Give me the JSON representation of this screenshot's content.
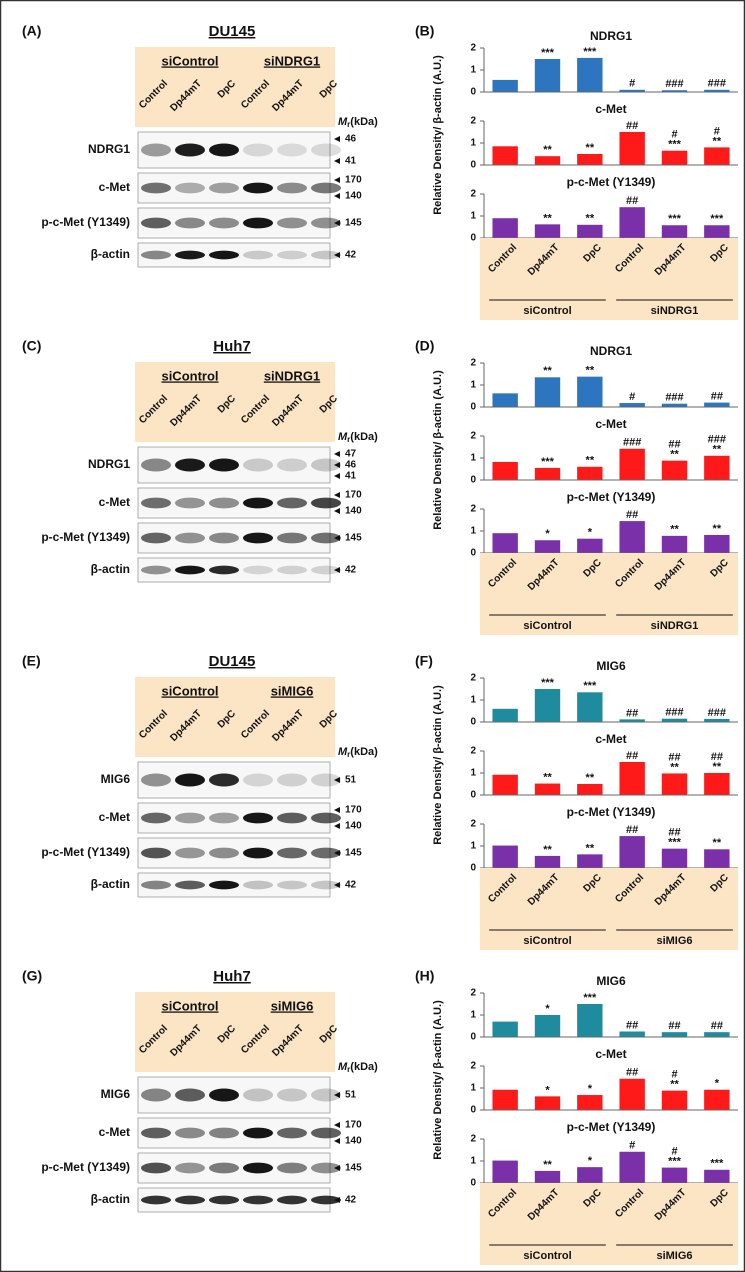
{
  "figure": {
    "blots": [
      {
        "label": "(A)",
        "cell": "DU145",
        "groups": [
          "siControl",
          "siNDRG1"
        ],
        "lanes": [
          "Control",
          "Dp44mT",
          "DpC",
          "Control",
          "Dp44mT",
          "DpC"
        ],
        "mr_label": "M",
        "mr_sub": "r",
        "mr_unit": "(kDa)",
        "rows": [
          {
            "name": "NDRG1",
            "markers": [
              "46",
              "41"
            ]
          },
          {
            "name": "c-Met",
            "markers": [
              "170",
              "140"
            ]
          },
          {
            "name": "p-c-Met (Y1349)",
            "markers": [
              "145"
            ]
          },
          {
            "name": "β-actin",
            "markers": [
              "42"
            ]
          }
        ]
      },
      {
        "label": "(C)",
        "cell": "Huh7",
        "groups": [
          "siControl",
          "siNDRG1"
        ],
        "lanes": [
          "Control",
          "Dp44mT",
          "DpC",
          "Control",
          "Dp44mT",
          "DpC"
        ],
        "mr_label": "M",
        "mr_sub": "r",
        "mr_unit": "(kDa)",
        "rows": [
          {
            "name": "NDRG1",
            "markers": [
              "47",
              "46",
              "41"
            ]
          },
          {
            "name": "c-Met",
            "markers": [
              "170",
              "140"
            ]
          },
          {
            "name": "p-c-Met (Y1349)",
            "markers": [
              "145"
            ]
          },
          {
            "name": "β-actin",
            "markers": [
              "42"
            ]
          }
        ]
      },
      {
        "label": "(E)",
        "cell": "DU145",
        "groups": [
          "siControl",
          "siMIG6"
        ],
        "lanes": [
          "Control",
          "Dp44mT",
          "DpC",
          "Control",
          "Dp44mT",
          "DpC"
        ],
        "mr_label": "M",
        "mr_sub": "r",
        "mr_unit": "(kDa)",
        "rows": [
          {
            "name": "MIG6",
            "markers": [
              "51"
            ]
          },
          {
            "name": "c-Met",
            "markers": [
              "170",
              "140"
            ]
          },
          {
            "name": "p-c-Met (Y1349)",
            "markers": [
              "145"
            ]
          },
          {
            "name": "β-actin",
            "markers": [
              "42"
            ]
          }
        ]
      },
      {
        "label": "(G)",
        "cell": "Huh7",
        "groups": [
          "siControl",
          "siMIG6"
        ],
        "lanes": [
          "Control",
          "Dp44mT",
          "DpC",
          "Control",
          "Dp44mT",
          "DpC"
        ],
        "mr_label": "M",
        "mr_sub": "r",
        "mr_unit": "(kDa)",
        "rows": [
          {
            "name": "MIG6",
            "markers": [
              "51"
            ]
          },
          {
            "name": "c-Met",
            "markers": [
              "170",
              "140"
            ]
          },
          {
            "name": "p-c-Met (Y1349)",
            "markers": [
              "145"
            ]
          },
          {
            "name": "β-actin",
            "markers": [
              "42"
            ]
          }
        ]
      }
    ],
    "plots": [
      {
        "label": "(B)",
        "ylabel": "Relative Density/ β-actin (A.U.)",
        "categories": [
          "Control",
          "Dp44mT",
          "DpC",
          "Control",
          "Dp44mT",
          "DpC"
        ],
        "groups": [
          "siControl",
          "siNDRG1"
        ]
      },
      {
        "label": "(D)",
        "ylabel": "Relative Density/ β-actin (A.U.)",
        "categories": [
          "Control",
          "Dp44mT",
          "DpC",
          "Control",
          "Dp44mT",
          "DpC"
        ],
        "groups": [
          "siControl",
          "siNDRG1"
        ]
      },
      {
        "label": "(F)",
        "ylabel": "Relative Density/ β-actin (A.U.)",
        "categories": [
          "Control",
          "Dp44mT",
          "DpC",
          "Control",
          "Dp44mT",
          "DpC"
        ],
        "groups": [
          "siControl",
          "siMIG6"
        ]
      },
      {
        "label": "(H)",
        "ylabel": "Relative Density/ β-actin (A.U.)",
        "categories": [
          "Control",
          "Dp44mT",
          "DpC",
          "Control",
          "Dp44mT",
          "DpC"
        ],
        "groups": [
          "siControl",
          "siMIG6"
        ]
      }
    ]
  },
  "chart_data": [
    {
      "type": "bar",
      "title": "NDRG1",
      "color": "#2e75c0",
      "values": [
        0.55,
        1.5,
        1.55,
        0.1,
        0.08,
        0.1
      ],
      "annotations": [
        null,
        [
          "***"
        ],
        [
          "***"
        ],
        [
          "#"
        ],
        [
          "###"
        ],
        [
          "###"
        ]
      ],
      "ylim": [
        0,
        2
      ],
      "yticks": [
        0,
        1,
        2
      ]
    },
    {
      "type": "bar",
      "title": "c-Met",
      "color": "#ff1a1a",
      "values": [
        0.85,
        0.4,
        0.5,
        1.5,
        0.65,
        0.8
      ],
      "annotations": [
        null,
        [
          "**"
        ],
        [
          "**"
        ],
        [
          "##"
        ],
        [
          "#",
          "***"
        ],
        [
          "#",
          "**"
        ]
      ],
      "ylim": [
        0,
        2
      ],
      "yticks": [
        0,
        1,
        2
      ]
    },
    {
      "type": "bar",
      "title": "p-c-Met (Y1349)",
      "color": "#7a30a8",
      "values": [
        0.9,
        0.62,
        0.6,
        1.4,
        0.58,
        0.58
      ],
      "annotations": [
        null,
        [
          "**"
        ],
        [
          "**"
        ],
        [
          "##"
        ],
        [
          "***"
        ],
        [
          "***"
        ]
      ],
      "ylim": [
        0,
        2
      ],
      "yticks": [
        0,
        1,
        2
      ]
    },
    {
      "type": "bar",
      "title": "NDRG1",
      "color": "#2e75c0",
      "values": [
        0.62,
        1.35,
        1.38,
        0.18,
        0.15,
        0.2
      ],
      "annotations": [
        null,
        [
          "**"
        ],
        [
          "**"
        ],
        [
          "#"
        ],
        [
          "###"
        ],
        [
          "##"
        ]
      ],
      "ylim": [
        0,
        2
      ],
      "yticks": [
        0,
        1,
        2
      ]
    },
    {
      "type": "bar",
      "title": "c-Met",
      "color": "#ff1a1a",
      "values": [
        0.82,
        0.55,
        0.6,
        1.42,
        0.88,
        1.1
      ],
      "annotations": [
        null,
        [
          "***"
        ],
        [
          "**"
        ],
        [
          "###"
        ],
        [
          "##",
          "**"
        ],
        [
          "###",
          "**"
        ]
      ],
      "ylim": [
        0,
        2
      ],
      "yticks": [
        0,
        1,
        2
      ]
    },
    {
      "type": "bar",
      "title": "p-c-Met (Y1349)",
      "color": "#7a30a8",
      "values": [
        0.9,
        0.58,
        0.65,
        1.45,
        0.78,
        0.82
      ],
      "annotations": [
        null,
        [
          "*"
        ],
        [
          "*"
        ],
        [
          "##"
        ],
        [
          "**"
        ],
        [
          "**"
        ]
      ],
      "ylim": [
        0,
        2
      ],
      "yticks": [
        0,
        1,
        2
      ]
    },
    {
      "type": "bar",
      "title": "MIG6",
      "color": "#1e8c9e",
      "values": [
        0.6,
        1.5,
        1.35,
        0.12,
        0.15,
        0.14
      ],
      "annotations": [
        null,
        [
          "***"
        ],
        [
          "***"
        ],
        [
          "##"
        ],
        [
          "###"
        ],
        [
          "###"
        ]
      ],
      "ylim": [
        0,
        2
      ],
      "yticks": [
        0,
        1,
        2
      ]
    },
    {
      "type": "bar",
      "title": "c-Met",
      "color": "#ff1a1a",
      "values": [
        0.92,
        0.52,
        0.5,
        1.5,
        0.98,
        1.0
      ],
      "annotations": [
        null,
        [
          "**"
        ],
        [
          "**"
        ],
        [
          "##"
        ],
        [
          "##",
          "**"
        ],
        [
          "##",
          "**"
        ]
      ],
      "ylim": [
        0,
        2
      ],
      "yticks": [
        0,
        1,
        2
      ]
    },
    {
      "type": "bar",
      "title": "p-c-Met (Y1349)",
      "color": "#7a30a8",
      "values": [
        1.02,
        0.55,
        0.62,
        1.45,
        0.88,
        0.85
      ],
      "annotations": [
        null,
        [
          "**"
        ],
        [
          "**"
        ],
        [
          "##"
        ],
        [
          "##",
          "***"
        ],
        [
          "**"
        ]
      ],
      "ylim": [
        0,
        2
      ],
      "yticks": [
        0,
        1,
        2
      ]
    },
    {
      "type": "bar",
      "title": "MIG6",
      "color": "#1e8c9e",
      "values": [
        0.7,
        1.0,
        1.5,
        0.25,
        0.22,
        0.22
      ],
      "annotations": [
        null,
        [
          "*"
        ],
        [
          "***"
        ],
        [
          "##"
        ],
        [
          "##"
        ],
        [
          "##"
        ]
      ],
      "ylim": [
        0,
        2
      ],
      "yticks": [
        0,
        1,
        2
      ]
    },
    {
      "type": "bar",
      "title": "c-Met",
      "color": "#ff1a1a",
      "values": [
        0.92,
        0.62,
        0.68,
        1.42,
        0.88,
        0.92
      ],
      "annotations": [
        null,
        [
          "*"
        ],
        [
          "*"
        ],
        [
          "##"
        ],
        [
          "#",
          "**"
        ],
        [
          "*"
        ]
      ],
      "ylim": [
        0,
        2
      ],
      "yticks": [
        0,
        1,
        2
      ]
    },
    {
      "type": "bar",
      "title": "p-c-Met (Y1349)",
      "color": "#7a30a8",
      "values": [
        1.02,
        0.55,
        0.72,
        1.42,
        0.7,
        0.6
      ],
      "annotations": [
        null,
        [
          "**"
        ],
        [
          "*"
        ],
        [
          "#"
        ],
        [
          "#",
          "***"
        ],
        [
          "***"
        ]
      ],
      "ylim": [
        0,
        2
      ],
      "yticks": [
        0,
        1,
        2
      ]
    }
  ]
}
